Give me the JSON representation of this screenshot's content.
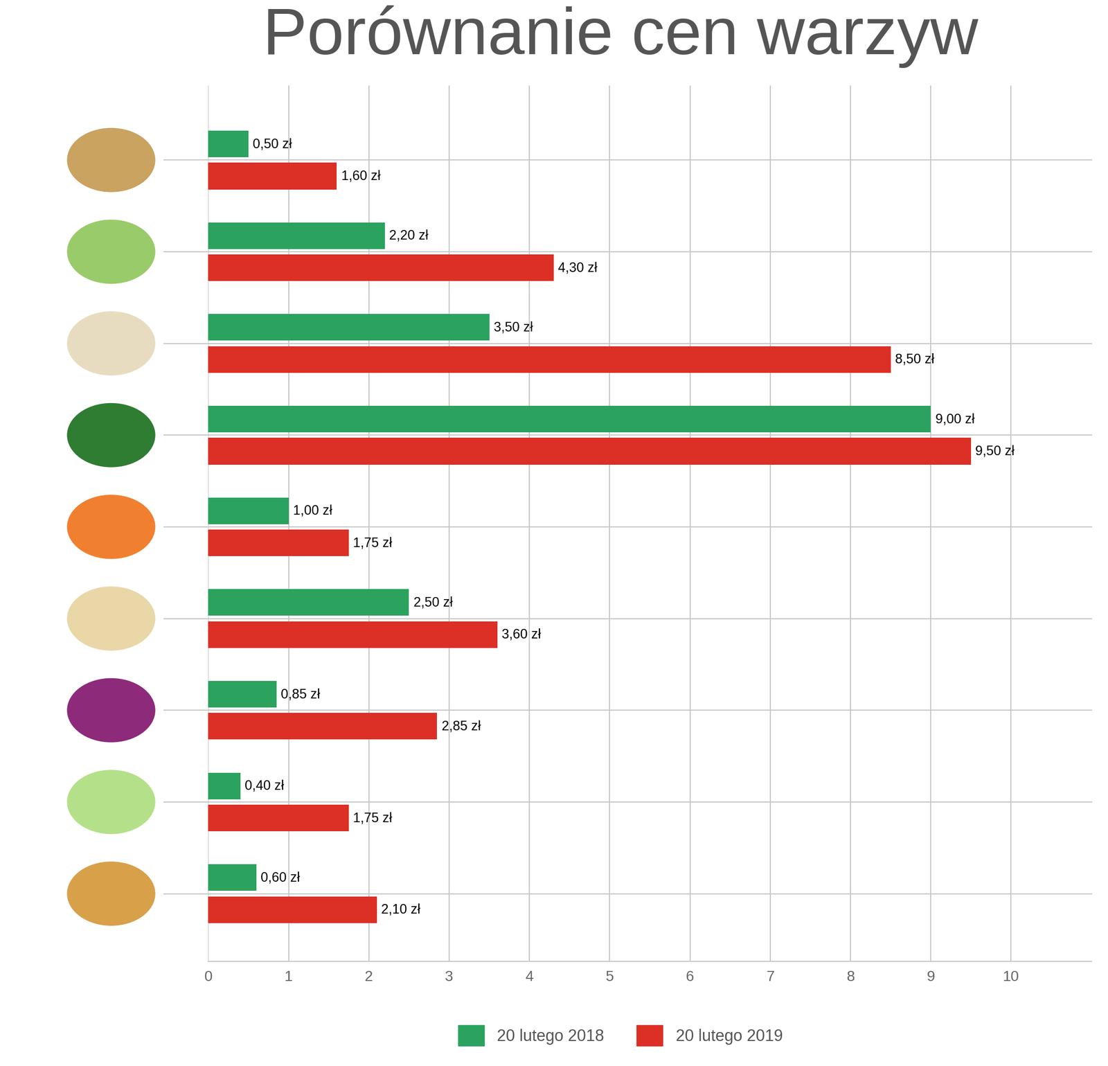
{
  "chart_data": {
    "type": "bar",
    "title": "Porównanie cen warzyw",
    "orientation": "horizontal",
    "categories": [
      null,
      null,
      null,
      null,
      null,
      null,
      null,
      null,
      null
    ],
    "series": [
      {
        "name": "20 lutego 2018",
        "color": "#2ca25f",
        "values": [
          0.5,
          2.2,
          3.5,
          9.0,
          1.0,
          2.5,
          0.85,
          0.4,
          0.6
        ],
        "value_labels": [
          "0,50 zł",
          "2,20 zł",
          "3,50 zł",
          "9,00 zł",
          "1,00 zł",
          "2,50 zł",
          "0,85 zł",
          "0,40 zł",
          "0,60 zł"
        ]
      },
      {
        "name": "20 lutego 2019",
        "color": "#dc2f26",
        "values": [
          1.6,
          4.3,
          8.5,
          9.5,
          1.75,
          3.6,
          2.85,
          1.75,
          2.1
        ],
        "value_labels": [
          "1,60 zł",
          "4,30 zł",
          "8,50 zł",
          "9,50 zł",
          "1,75 zł",
          "3,60 zł",
          "2,85 zł",
          "1,75 zł",
          "2,10 zł"
        ]
      }
    ],
    "xlim": [
      0,
      11
    ],
    "xticks": [
      0,
      1,
      2,
      3,
      4,
      5,
      6,
      7,
      8,
      9,
      10
    ],
    "grid": true,
    "data_labels": true,
    "tick_labels": "x",
    "legend": "lower center"
  }
}
